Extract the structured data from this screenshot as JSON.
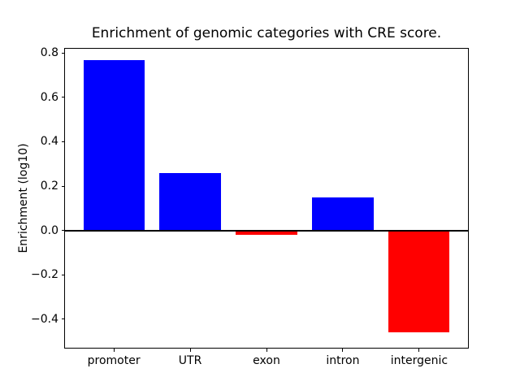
{
  "figure": {
    "background": "#ffffff"
  },
  "chart_data": {
    "type": "bar",
    "title": "Enrichment of genomic categories with CRE score.",
    "xlabel": "",
    "ylabel": "Enrichment (log10)",
    "categories": [
      "promoter",
      "UTR",
      "exon",
      "intron",
      "intergenic"
    ],
    "values": [
      0.77,
      0.26,
      -0.02,
      0.15,
      -0.46
    ],
    "bar_colors": [
      "#0000ff",
      "#0000ff",
      "#ff0000",
      "#0000ff",
      "#ff0000"
    ],
    "positive_color": "#0000ff",
    "negative_color": "#ff0000",
    "bar_width_fraction": 0.8,
    "ylim": [
      -0.53,
      0.82
    ],
    "xlim": [
      -0.64,
      4.64
    ],
    "yticks": [
      0.8,
      0.6,
      0.4,
      0.2,
      0.0,
      -0.2,
      -0.4
    ],
    "zero_line": true,
    "zero_line_color": "#000000",
    "grid": false,
    "axis_color": "#000000",
    "text_color": "#000000"
  }
}
